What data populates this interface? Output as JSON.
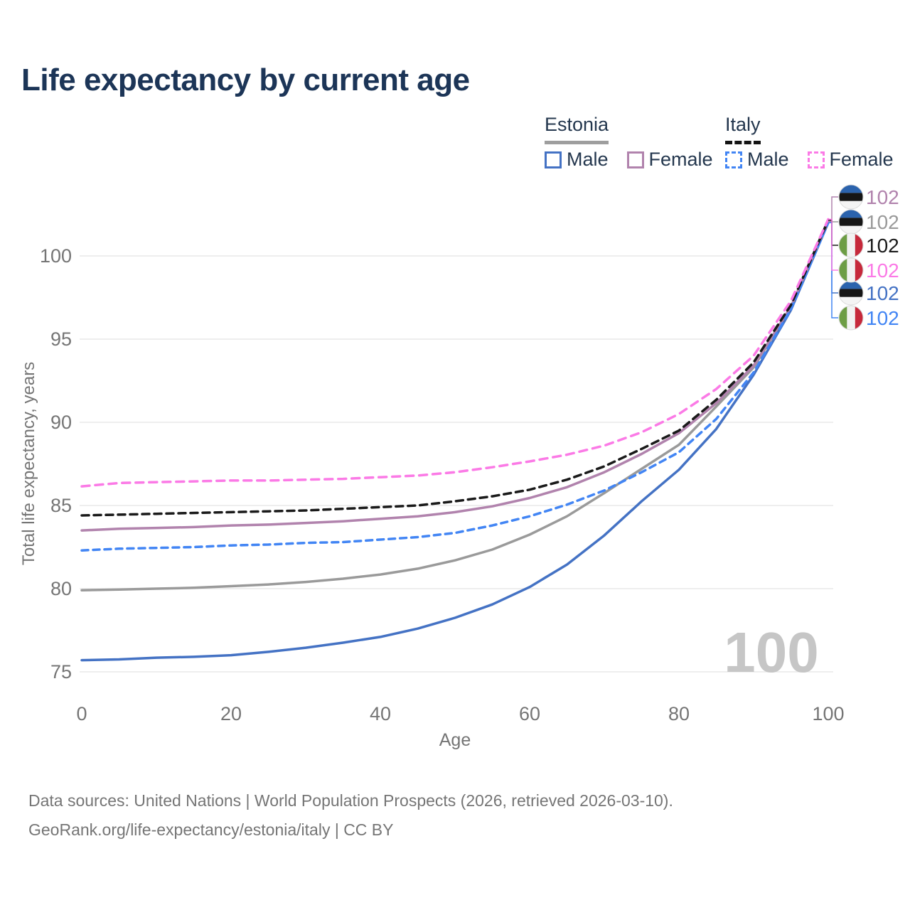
{
  "title": "Life expectancy by current age",
  "watermark_age": "100",
  "legend": {
    "position": "top-right",
    "groups": [
      {
        "id": "estonia",
        "label": "Estonia",
        "underline": "solid-gray",
        "items": [
          {
            "id": "estonia-male",
            "label": "Male",
            "color": "#4472c4",
            "dashed": false
          },
          {
            "id": "estonia-female",
            "label": "Female",
            "color": "#b183ad",
            "dashed": false
          }
        ]
      },
      {
        "id": "italy",
        "label": "Italy",
        "underline": "dashed-black",
        "items": [
          {
            "id": "italy-male",
            "label": "Male",
            "color": "#4285f4",
            "dashed": true
          },
          {
            "id": "italy-female",
            "label": "Female",
            "color": "#fb7ae6",
            "dashed": true
          }
        ]
      }
    ]
  },
  "footer": {
    "line1": "Data sources: United Nations | World Population Prospects (2026, retrieved 2026-03-10).",
    "line2": "GeoRank.org/life-expectancy/estonia/italy | CC BY"
  },
  "colors": {
    "title": "#1c3557",
    "axis_text": "#757575",
    "gridline": "#e9e9e9",
    "watermark": "#c6c6c6",
    "estonia_total": "#9a9a9a",
    "estonia_male": "#4472c4",
    "estonia_female": "#b183ad",
    "italy_total": "#1a1a1a",
    "italy_male": "#4285f4",
    "italy_female": "#fb7ae6"
  },
  "chart_data": {
    "type": "line",
    "title": "Life expectancy by current age",
    "xlabel": "Age",
    "ylabel": "Total life expectancy, years",
    "xlim": [
      0,
      100
    ],
    "ylim": [
      74,
      103
    ],
    "xticks": [
      0,
      20,
      40,
      60,
      80,
      100
    ],
    "yticks": [
      75,
      80,
      85,
      90,
      95,
      100
    ],
    "grid": true,
    "legend_position": "top-right",
    "x": [
      0,
      5,
      10,
      15,
      20,
      25,
      30,
      35,
      40,
      45,
      50,
      55,
      60,
      65,
      70,
      75,
      80,
      85,
      90,
      95,
      100
    ],
    "series": [
      {
        "id": "estonia-total",
        "name": "Estonia",
        "country": "Estonia",
        "sex": "Both",
        "color": "#9a9a9a",
        "dash": "",
        "flag": "ee",
        "end_label": "102",
        "label_slot": 1,
        "values": [
          79.9,
          79.95,
          80.0,
          80.05,
          80.15,
          80.25,
          80.4,
          80.6,
          80.85,
          81.2,
          81.7,
          82.35,
          83.25,
          84.35,
          85.75,
          87.2,
          88.65,
          90.95,
          93.3,
          96.9,
          102.05
        ]
      },
      {
        "id": "estonia-male",
        "name": "Estonia Male",
        "country": "Estonia",
        "sex": "Male",
        "color": "#4472c4",
        "dash": "",
        "flag": "ee",
        "end_label": "102",
        "label_slot": 4,
        "values": [
          75.7,
          75.75,
          75.85,
          75.9,
          76.0,
          76.2,
          76.45,
          76.75,
          77.1,
          77.6,
          78.25,
          79.05,
          80.1,
          81.45,
          83.2,
          85.25,
          87.15,
          89.6,
          92.85,
          96.75,
          102.0
        ]
      },
      {
        "id": "estonia-female",
        "name": "Estonia Female",
        "country": "Estonia",
        "sex": "Female",
        "color": "#b183ad",
        "dash": "",
        "flag": "ee",
        "end_label": "102",
        "label_slot": 0,
        "values": [
          83.5,
          83.6,
          83.65,
          83.7,
          83.8,
          83.85,
          83.95,
          84.05,
          84.2,
          84.35,
          84.6,
          84.95,
          85.45,
          86.1,
          87.0,
          88.1,
          89.35,
          91.15,
          93.4,
          96.95,
          102.1
        ]
      },
      {
        "id": "italy-male",
        "name": "Italy Male",
        "country": "Italy",
        "sex": "Male",
        "color": "#4285f4",
        "dash": "9 7",
        "flag": "it",
        "end_label": "102",
        "label_slot": 5,
        "values": [
          82.3,
          82.4,
          82.45,
          82.5,
          82.6,
          82.65,
          82.75,
          82.8,
          82.95,
          83.1,
          83.35,
          83.8,
          84.35,
          85.05,
          85.9,
          87.0,
          88.2,
          90.2,
          93.0,
          96.8,
          102.0
        ]
      },
      {
        "id": "italy-total",
        "name": "Italy",
        "country": "Italy",
        "sex": "Both",
        "color": "#1a1a1a",
        "dash": "10 7",
        "flag": "it",
        "end_label": "102",
        "label_slot": 2,
        "values": [
          84.4,
          84.45,
          84.5,
          84.55,
          84.6,
          84.65,
          84.7,
          84.8,
          84.9,
          85.0,
          85.25,
          85.55,
          85.95,
          86.55,
          87.35,
          88.4,
          89.5,
          91.35,
          93.6,
          97.05,
          102.15
        ]
      },
      {
        "id": "italy-female",
        "name": "Italy Female",
        "country": "Italy",
        "sex": "Female",
        "color": "#fb7ae6",
        "dash": "11 8",
        "flag": "it",
        "end_label": "102",
        "label_slot": 3,
        "values": [
          86.15,
          86.35,
          86.4,
          86.45,
          86.5,
          86.5,
          86.55,
          86.6,
          86.7,
          86.8,
          87.0,
          87.3,
          87.65,
          88.05,
          88.6,
          89.4,
          90.5,
          92.0,
          94.0,
          97.3,
          102.2
        ]
      }
    ]
  }
}
